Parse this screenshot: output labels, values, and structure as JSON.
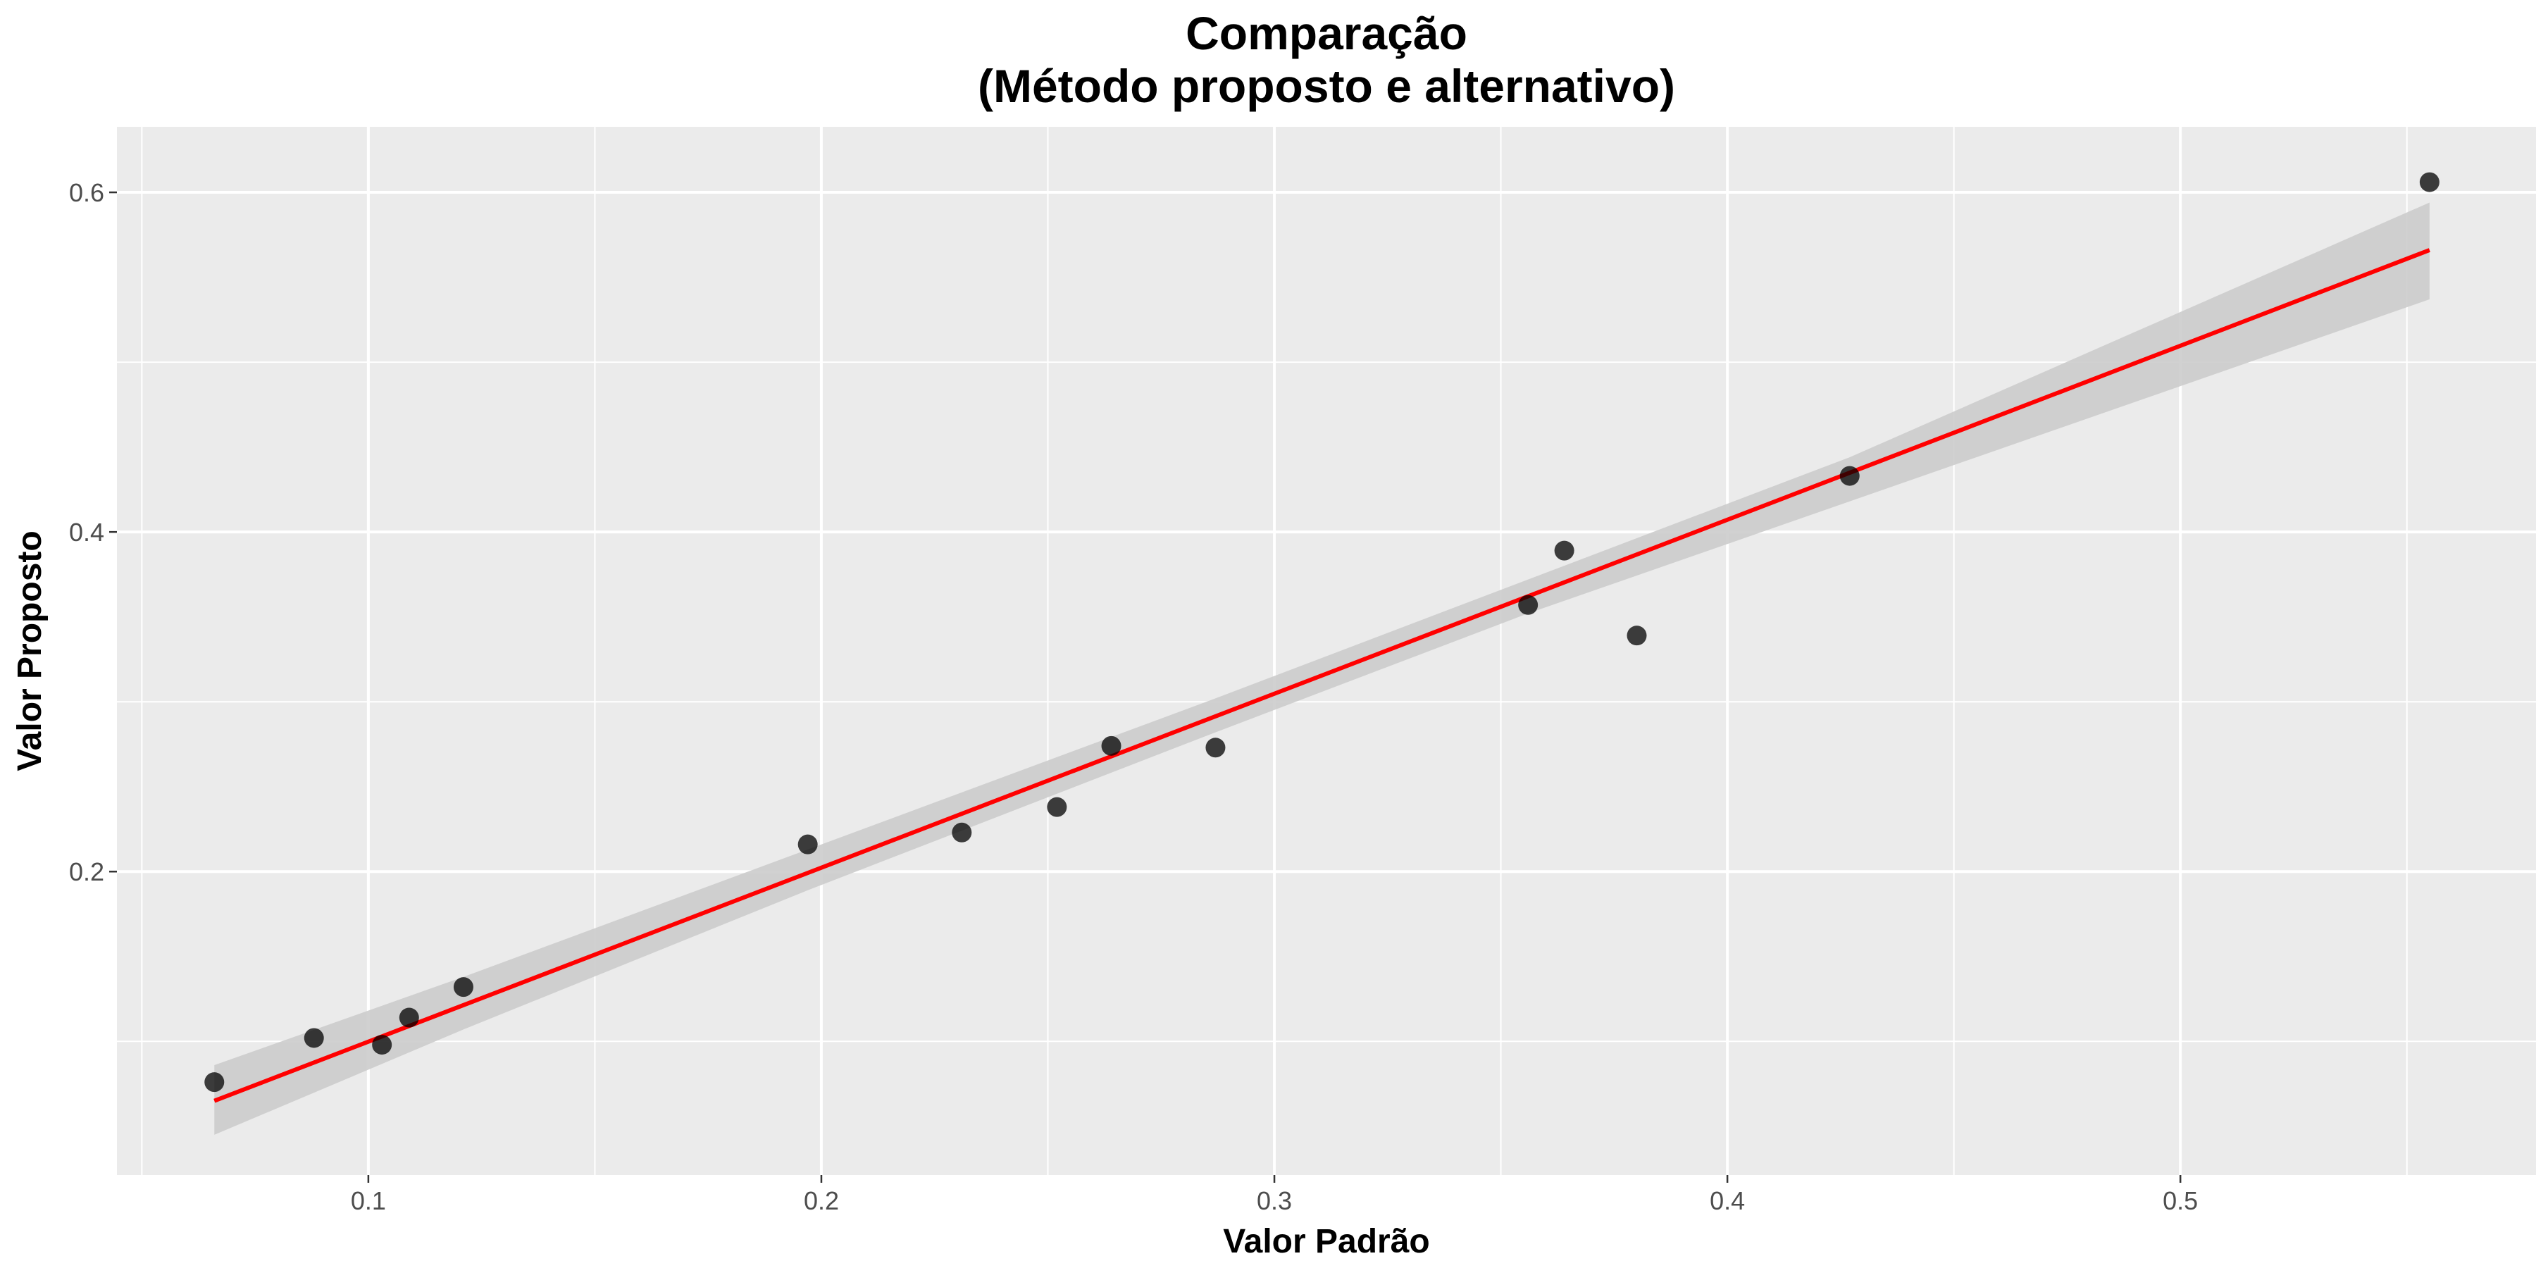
{
  "chart_data": {
    "type": "scatter",
    "title": "Comparação",
    "subtitle": "(Método proposto e alternativo)",
    "xlabel": "Valor Padrão",
    "ylabel": "Valor Proposto",
    "xlim": [
      0.0445,
      0.5785
    ],
    "ylim": [
      0.0213,
      0.6386
    ],
    "x_ticks": [
      0.1,
      0.2,
      0.3,
      0.4,
      0.5
    ],
    "x_tick_labels": [
      "0.1",
      "0.2",
      "0.3",
      "0.4",
      "0.5"
    ],
    "y_ticks": [
      0.2,
      0.4,
      0.6
    ],
    "y_tick_labels": [
      "0.2",
      "0.4",
      "0.6"
    ],
    "x_minor_ticks": [
      0.05,
      0.15,
      0.25,
      0.35,
      0.45,
      0.55
    ],
    "y_minor_ticks": [
      0.1,
      0.3,
      0.5
    ],
    "grid": true,
    "colors": {
      "panel_background": "#ebebeb",
      "grid": "#ffffff",
      "points": "#000000",
      "fit_line": "#ff0000",
      "confidence_band": "#cccccc"
    },
    "points": [
      {
        "x": 0.066,
        "y": 0.076
      },
      {
        "x": 0.088,
        "y": 0.102
      },
      {
        "x": 0.103,
        "y": 0.098
      },
      {
        "x": 0.109,
        "y": 0.114
      },
      {
        "x": 0.121,
        "y": 0.132
      },
      {
        "x": 0.197,
        "y": 0.216
      },
      {
        "x": 0.231,
        "y": 0.223
      },
      {
        "x": 0.252,
        "y": 0.238
      },
      {
        "x": 0.264,
        "y": 0.274
      },
      {
        "x": 0.287,
        "y": 0.273
      },
      {
        "x": 0.356,
        "y": 0.357
      },
      {
        "x": 0.364,
        "y": 0.389
      },
      {
        "x": 0.38,
        "y": 0.339
      },
      {
        "x": 0.427,
        "y": 0.433
      },
      {
        "x": 0.555,
        "y": 0.606
      }
    ],
    "fit_line": {
      "x": [
        0.066,
        0.555
      ],
      "y": [
        0.065,
        0.566
      ]
    },
    "confidence_band": {
      "x": [
        0.066,
        0.121,
        0.197,
        0.287,
        0.356,
        0.427,
        0.555
      ],
      "lower": [
        0.045,
        0.107,
        0.189,
        0.282,
        0.352,
        0.418,
        0.537
      ],
      "upper": [
        0.086,
        0.138,
        0.213,
        0.302,
        0.372,
        0.444,
        0.594
      ]
    }
  }
}
